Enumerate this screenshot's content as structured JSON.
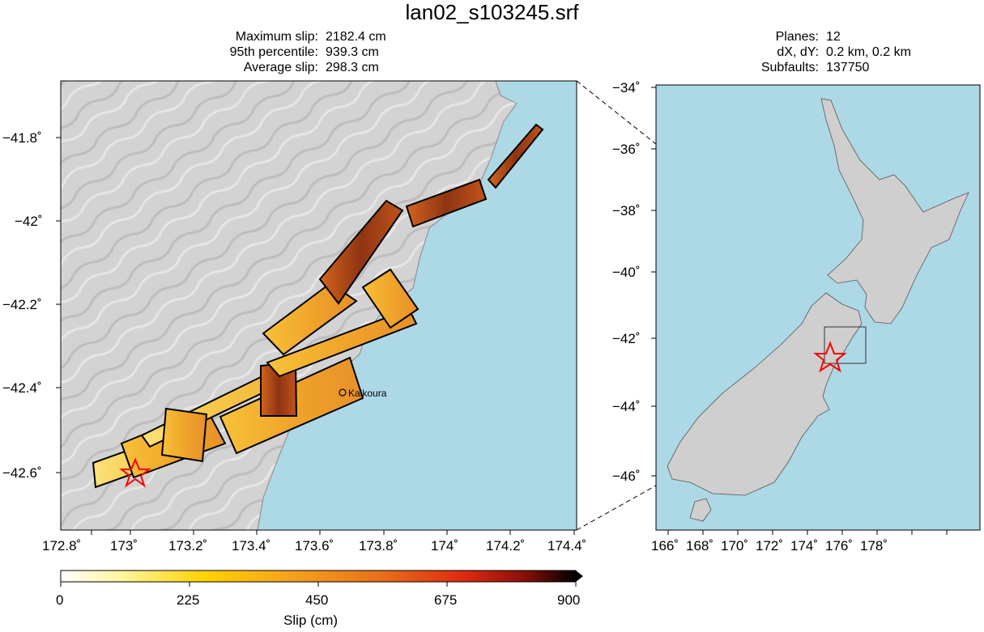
{
  "title": "lan02_s103245.srf",
  "slip_stats": [
    {
      "label": "Maximum slip:",
      "value": "2182.4 cm"
    },
    {
      "label": "95th percentile:",
      "value": "939.3 cm"
    },
    {
      "label": "Average slip:",
      "value": "298.3 cm"
    }
  ],
  "grid_stats": [
    {
      "label": "Planes:",
      "value": "12"
    },
    {
      "label": "dX, dY:",
      "value": "0.2 km, 0.2 km"
    },
    {
      "label": "Subfaults:",
      "value": "137750"
    }
  ],
  "detail_map": {
    "x_ticks": [
      "172.8˚",
      "173˚",
      "173.2˚",
      "173.4˚",
      "173.6˚",
      "173.8˚",
      "174˚",
      "174.2˚",
      "174.4˚"
    ],
    "y_ticks": [
      "−41.8˚",
      "−42˚",
      "−42.2˚",
      "−42.4˚",
      "−42.6˚"
    ],
    "place_label": "Kaikoura",
    "colors": {
      "ocean": "#add8e6",
      "land": "#d4d4d4",
      "frame": "#000000"
    }
  },
  "overview_map": {
    "x_ticks": [
      "166˚",
      "168˚",
      "170˚",
      "172˚",
      "174˚",
      "176˚",
      "178˚"
    ],
    "y_ticks": [
      "−34˚",
      "−36˚",
      "−38˚",
      "−40˚",
      "−42˚",
      "−44˚",
      "−46˚"
    ],
    "colors": {
      "ocean": "#add8e6",
      "land": "#cfcfcf"
    }
  },
  "colorbar": {
    "ticks": [
      "0",
      "225",
      "450",
      "675",
      "900"
    ],
    "label": "Slip (cm)",
    "min": 0,
    "max": 900,
    "stops": [
      "#ffffff",
      "#fff59a",
      "#ffd200",
      "#f5a21c",
      "#e8701a",
      "#e02a10",
      "#8a0f0a",
      "#000000"
    ]
  },
  "hypocenter_color": "#ff0000"
}
